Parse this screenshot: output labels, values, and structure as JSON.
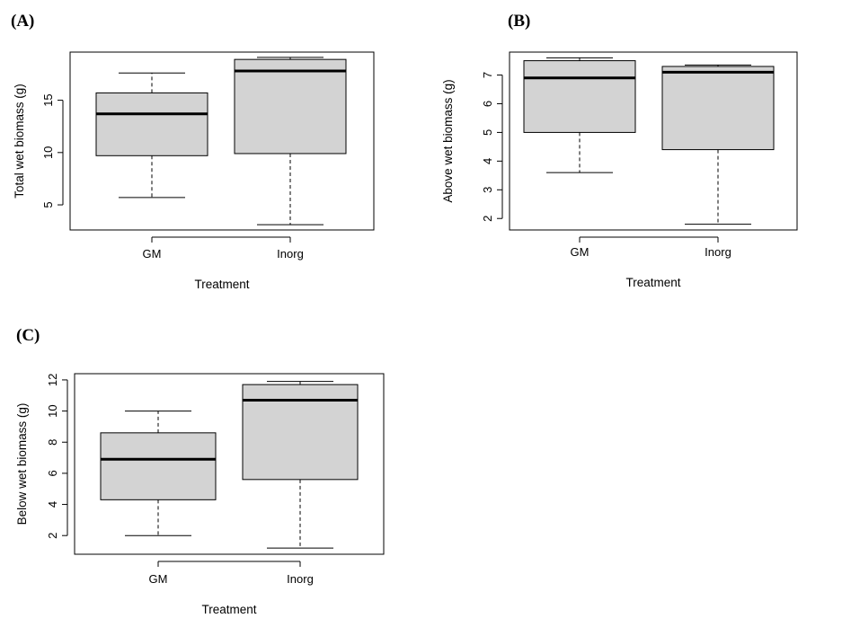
{
  "chart_data": [
    {
      "type": "boxplot",
      "panel_label": "(A)",
      "xlabel": "Treatment",
      "ylabel": "Total wet biomass (g)",
      "categories": [
        "GM",
        "Inorg"
      ],
      "yticks": [
        5,
        10,
        15
      ],
      "ylim": [
        2.6,
        19.6
      ],
      "box_color": "#d3d3d3",
      "boxes": [
        {
          "category": "GM",
          "whisker_low": 5.7,
          "q1": 9.7,
          "median": 13.7,
          "q3": 15.7,
          "whisker_high": 17.6
        },
        {
          "category": "Inorg",
          "whisker_low": 3.1,
          "q1": 9.9,
          "median": 17.8,
          "q3": 18.9,
          "whisker_high": 19.1
        }
      ]
    },
    {
      "type": "boxplot",
      "panel_label": "(B)",
      "xlabel": "Treatment",
      "ylabel": "Above wet biomass (g)",
      "categories": [
        "GM",
        "Inorg"
      ],
      "yticks": [
        2,
        3,
        4,
        5,
        6,
        7
      ],
      "ylim": [
        1.6,
        7.8
      ],
      "box_color": "#d3d3d3",
      "boxes": [
        {
          "category": "GM",
          "whisker_low": 3.6,
          "q1": 5.0,
          "median": 6.9,
          "q3": 7.5,
          "whisker_high": 7.6
        },
        {
          "category": "Inorg",
          "whisker_low": 1.8,
          "q1": 4.4,
          "median": 7.1,
          "q3": 7.3,
          "whisker_high": 7.35
        }
      ]
    },
    {
      "type": "boxplot",
      "panel_label": "(C)",
      "xlabel": "Treatment",
      "ylabel": "Below wet biomass (g)",
      "categories": [
        "GM",
        "Inorg"
      ],
      "yticks": [
        2,
        4,
        6,
        8,
        10,
        12
      ],
      "ylim": [
        0.8,
        12.4
      ],
      "box_color": "#d3d3d3",
      "boxes": [
        {
          "category": "GM",
          "whisker_low": 2.0,
          "q1": 4.3,
          "median": 6.9,
          "q3": 8.6,
          "whisker_high": 10.0
        },
        {
          "category": "Inorg",
          "whisker_low": 1.2,
          "q1": 5.6,
          "median": 10.7,
          "q3": 11.7,
          "whisker_high": 11.9
        }
      ]
    }
  ]
}
